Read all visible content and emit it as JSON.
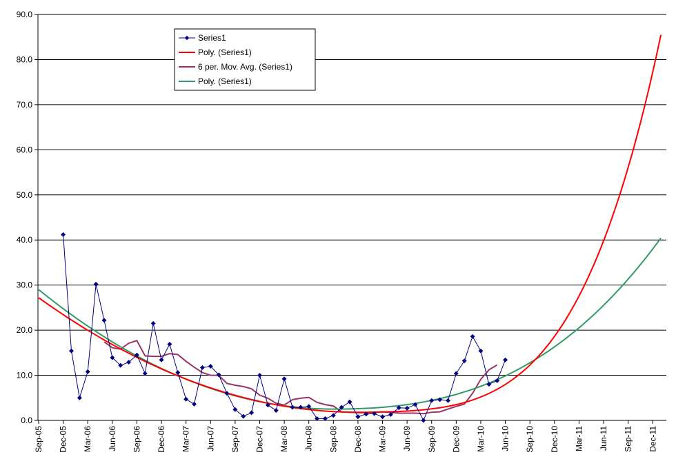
{
  "chart_data": {
    "type": "line",
    "title": "",
    "xlabel": "",
    "ylabel": "",
    "ylim": [
      0,
      90
    ],
    "yticks": [
      "0.0",
      "10.0",
      "20.0",
      "30.0",
      "40.0",
      "50.0",
      "60.0",
      "70.0",
      "80.0",
      "90.0"
    ],
    "xticks": [
      "Sep-05",
      "Dec-05",
      "Mar-06",
      "Jun-06",
      "Sep-06",
      "Dec-06",
      "Mar-07",
      "Jun-07",
      "Sep-07",
      "Dec-07",
      "Mar-08",
      "Jun-08",
      "Sep-08",
      "Dec-08",
      "Mar-09",
      "Jun-09",
      "Sep-09",
      "Dec-09",
      "Mar-10",
      "Jun-10",
      "Sep-10",
      "Dec-10",
      "Mar-11",
      "Jun-11",
      "Sep-11",
      "Dec-11"
    ],
    "x_start": "Sep-05",
    "grid": "horizontal",
    "legend_placement": "top-left",
    "series": [
      {
        "name": "Series1",
        "color": "#000080",
        "marker": "diamond",
        "start": "Dec-05",
        "values": [
          41.2,
          15.4,
          5.0,
          10.8,
          30.2,
          22.2,
          13.9,
          12.2,
          12.9,
          14.5,
          10.4,
          21.5,
          13.4,
          16.9,
          10.6,
          4.7,
          3.6,
          11.7,
          12.0,
          10.1,
          6.0,
          2.4,
          0.9,
          1.7,
          10.0,
          3.4,
          2.2,
          9.2,
          2.9,
          2.9,
          3.1,
          0.4,
          0.4,
          1.1,
          2.9,
          4.1,
          0.8,
          1.4,
          1.5,
          0.8,
          1.3,
          2.8,
          2.7,
          3.5,
          0.0,
          4.4,
          4.6,
          4.4,
          10.4,
          13.2,
          18.6,
          15.4,
          8.0,
          8.8,
          13.4
        ]
      },
      {
        "name": "Poly. (Series1)",
        "color": "#ff0000",
        "kind": "poly-red",
        "start": "Sep-05",
        "end": "Jan-12"
      },
      {
        "name": "6 per. Mov. Avg. (Series1)",
        "color": "#993366",
        "start": "May-06",
        "values": [
          17.4,
          16.1,
          15.8,
          17.1,
          17.7,
          14.3,
          14.2,
          14.2,
          14.8,
          14.6,
          13.1,
          11.8,
          10.6,
          10.0,
          10.0,
          8.2,
          7.8,
          7.5,
          7.0,
          5.6,
          4.9,
          3.8,
          3.4,
          4.6,
          4.9,
          5.1,
          4.0,
          3.5,
          3.2,
          1.9,
          1.8,
          1.7,
          1.7,
          1.8,
          1.9,
          1.8,
          1.6,
          1.6,
          1.6,
          1.5,
          1.8,
          1.9,
          2.5,
          3.1,
          3.6,
          6.0,
          9.1,
          11.2,
          12.3
        ]
      },
      {
        "name": "Poly. (Series1)",
        "color": "#339966",
        "kind": "poly-green",
        "start": "Sep-05",
        "end": "Jan-12"
      }
    ]
  }
}
